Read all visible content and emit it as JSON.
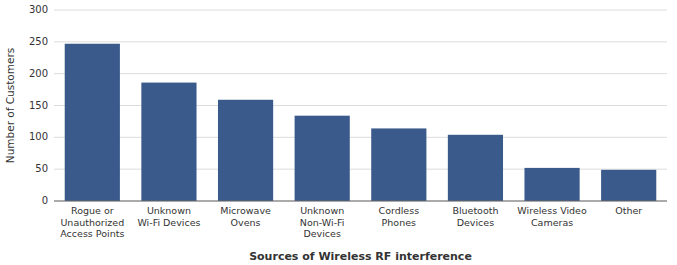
{
  "chart_data": {
    "type": "bar",
    "categories": [
      "Rogue or\nUnauthorized\nAccess Points",
      "Unknown\nWi-Fi Devices",
      "Microwave\nOvens",
      "Unknown\nNon-Wi-Fi\nDevices",
      "Cordless\nPhones",
      "Bluetooth\nDevices",
      "Wireless Video\nCameras",
      "Other"
    ],
    "values": [
      247,
      186,
      159,
      134,
      114,
      104,
      52,
      49
    ],
    "color": "#3A5A8C",
    "xlabel": "Sources of Wireless RF interference",
    "ylabel": "Number of Customers",
    "ylim": [
      0,
      300
    ],
    "yticks": [
      0,
      50,
      100,
      150,
      200,
      250,
      300
    ],
    "grid": true
  }
}
